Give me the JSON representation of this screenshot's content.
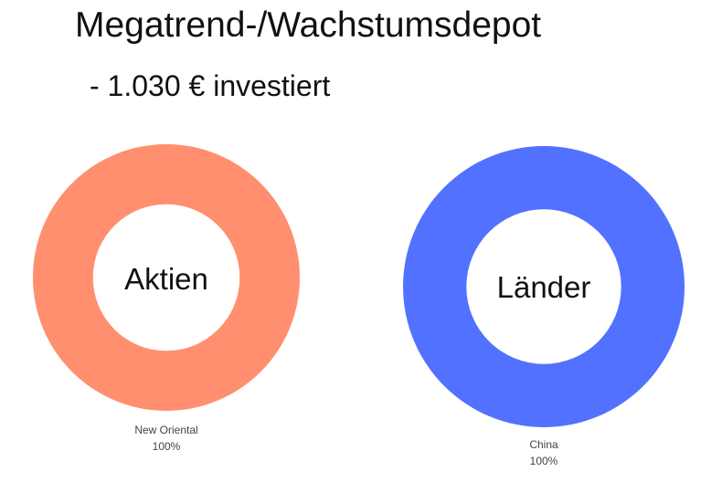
{
  "title": "Megatrend-/Wachstumsdepot",
  "subtitle": "- 1.030 € investiert",
  "chart_data": [
    {
      "type": "pie",
      "center_label": "Aktien",
      "categories": [
        "New Oriental"
      ],
      "values": [
        100
      ],
      "percent_labels": [
        "100%"
      ],
      "colors": [
        "#FF8F6E"
      ]
    },
    {
      "type": "pie",
      "center_label": "Länder",
      "categories": [
        "China"
      ],
      "values": [
        100
      ],
      "percent_labels": [
        "100%"
      ],
      "colors": [
        "#5271FF"
      ]
    }
  ]
}
